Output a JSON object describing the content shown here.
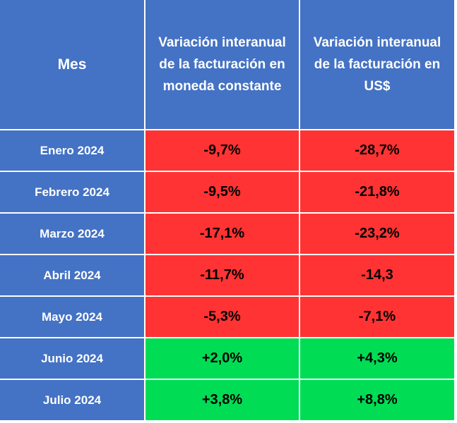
{
  "table": {
    "headers": {
      "month": "Mes",
      "constant": "Variación interanual de la facturación en moneda constante",
      "usd": "Variación interanual de la facturación en US$"
    },
    "colors": {
      "header_bg": "#4472c4",
      "negative_bg": "#ff3333",
      "positive_bg": "#00dd55"
    },
    "rows": [
      {
        "month": "Enero 2024",
        "constant": "-9,7%",
        "usd": "-28,7%",
        "trend": "negative"
      },
      {
        "month": "Febrero 2024",
        "constant": "-9,5%",
        "usd": "-21,8%",
        "trend": "negative"
      },
      {
        "month": "Marzo 2024",
        "constant": "-17,1%",
        "usd": "-23,2%",
        "trend": "negative"
      },
      {
        "month": "Abril 2024",
        "constant": "-11,7%",
        "usd": "-14,3",
        "trend": "negative"
      },
      {
        "month": "Mayo 2024",
        "constant": "-5,3%",
        "usd": "-7,1%",
        "trend": "negative"
      },
      {
        "month": "Junio 2024",
        "constant": "+2,0%",
        "usd": "+4,3%",
        "trend": "positive"
      },
      {
        "month": "Julio 2024",
        "constant": "+3,8%",
        "usd": "+8,8%",
        "trend": "positive"
      }
    ]
  }
}
